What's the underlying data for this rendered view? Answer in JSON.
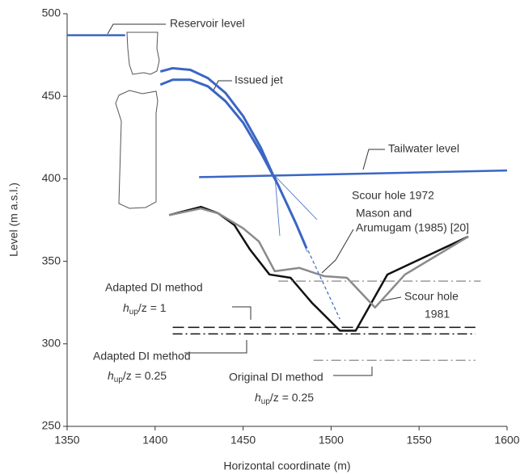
{
  "chart_data": {
    "type": "line",
    "xlabel": "Horizontal coordinate (m)",
    "ylabel": "Level (m a.s.l.)",
    "xlim": [
      1350,
      1600
    ],
    "ylim": [
      250,
      500
    ],
    "xticks": [
      1350,
      1400,
      1450,
      1500,
      1550,
      1600
    ],
    "yticks": [
      250,
      300,
      350,
      400,
      450,
      500
    ],
    "series": [
      {
        "color": "#3a66c4",
        "width": 2.5,
        "dash": "none",
        "x": [
          1350,
          1383
        ],
        "values": [
          487,
          487
        ]
      },
      {
        "color": "#3a66c4",
        "width": 3,
        "dash": "none",
        "x": [
          1403,
          1410,
          1420,
          1430,
          1440,
          1450,
          1460,
          1468
        ],
        "values": [
          465,
          467,
          466,
          461,
          452,
          438,
          419,
          400
        ]
      },
      {
        "color": "#3a66c4",
        "width": 3,
        "dash": "none",
        "x": [
          1403,
          1410,
          1420,
          1430,
          1440,
          1450,
          1460,
          1470,
          1480,
          1486
        ],
        "values": [
          457,
          460,
          460,
          456,
          447,
          434,
          416,
          396,
          373,
          358
        ]
      },
      {
        "color": "#3a66c4",
        "width": 1.2,
        "dash": "4,3",
        "x": [
          1468,
          1505
        ],
        "values": [
          400,
          315
        ]
      },
      {
        "color": "#3a66c4",
        "width": 2.5,
        "dash": "none",
        "x": [
          1425,
          1600
        ],
        "values": [
          401,
          405
        ]
      },
      {
        "color": "#111111",
        "width": 2.5,
        "dash": "none",
        "x": [
          1408,
          1426,
          1436,
          1445,
          1454,
          1465,
          1477,
          1489,
          1505,
          1514,
          1532,
          1578
        ],
        "values": [
          378,
          383,
          379,
          372,
          357,
          342,
          340,
          325,
          308,
          308,
          342,
          365
        ]
      },
      {
        "color": "#8a8a8a",
        "width": 2.5,
        "dash": "none",
        "x": [
          1408,
          1426,
          1436,
          1450,
          1459,
          1468,
          1482,
          1496,
          1509,
          1525,
          1542,
          1578
        ],
        "values": [
          378,
          382,
          379,
          370,
          362,
          344,
          346,
          341,
          340,
          322,
          342,
          365
        ]
      },
      {
        "color": "#9a9a9a",
        "width": 1.5,
        "dash": "12,4,2,4",
        "x": [
          1470,
          1585
        ],
        "values": [
          338,
          338
        ]
      },
      {
        "color": "#111111",
        "width": 1.5,
        "dash": "14,5",
        "x": [
          1410,
          1582
        ],
        "values": [
          310,
          310
        ]
      },
      {
        "color": "#111111",
        "width": 1.5,
        "dash": "12,4,2,4",
        "x": [
          1410,
          1582
        ],
        "values": [
          306,
          306
        ]
      },
      {
        "color": "#9a9a9a",
        "width": 1.5,
        "dash": "12,4,2,4",
        "x": [
          1490,
          1582
        ],
        "values": [
          290,
          290
        ]
      }
    ],
    "annotations": [
      {
        "lines": [
          "Reservoir level"
        ]
      },
      {
        "lines": [
          "Issued jet"
        ]
      },
      {
        "lines": [
          "Tailwater level"
        ]
      },
      {
        "lines": [
          "Scour hole 1972"
        ]
      },
      {
        "lines": [
          "Mason and",
          "Arumugam (1985) [20]"
        ]
      },
      {
        "lines": [
          "Scour hole",
          "1981"
        ]
      },
      {
        "lines": [
          "Adapted DI method"
        ],
        "ratio": {
          "symbol": "h",
          "subscript": "up",
          "text": "/z = 1"
        }
      },
      {
        "lines": [
          "Adapted DI method"
        ],
        "ratio": {
          "symbol": "h",
          "subscript": "up",
          "text": "/z = 0.25"
        }
      },
      {
        "lines": [
          "Original DI method"
        ],
        "ratio": {
          "symbol": "h",
          "subscript": "up",
          "text": "/z = 0.25"
        }
      }
    ]
  }
}
